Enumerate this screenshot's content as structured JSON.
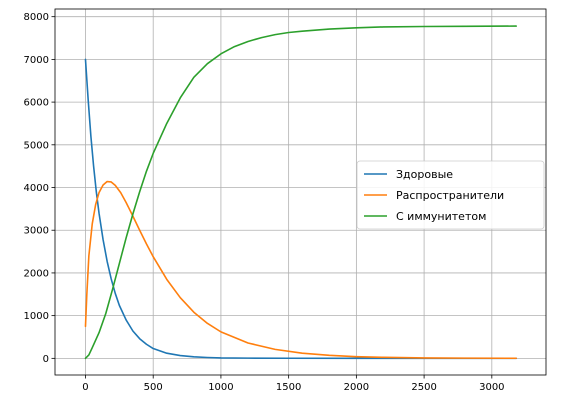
{
  "chart_data": {
    "type": "line",
    "title": "",
    "xlabel": "",
    "ylabel": "",
    "xlim": [
      -225,
      3400
    ],
    "ylim": [
      -390,
      8180
    ],
    "xticks": [
      0,
      500,
      1000,
      1500,
      2000,
      2500,
      3000
    ],
    "yticks": [
      0,
      1000,
      2000,
      3000,
      4000,
      5000,
      6000,
      7000,
      8000
    ],
    "grid": true,
    "legend_position": "center-right",
    "series": [
      {
        "name": "Здоровые",
        "color": "#1f77b4",
        "x": [
          0,
          20,
          40,
          60,
          80,
          100,
          130,
          160,
          190,
          220,
          250,
          300,
          350,
          400,
          450,
          500,
          600,
          700,
          800,
          900,
          1000,
          1200,
          1500,
          2000,
          2500,
          3000,
          3180
        ],
        "y": [
          7000,
          6050,
          5200,
          4500,
          3900,
          3400,
          2780,
          2270,
          1860,
          1520,
          1240,
          900,
          640,
          460,
          330,
          230,
          120,
          65,
          35,
          20,
          10,
          5,
          2,
          1,
          0,
          0,
          0
        ]
      },
      {
        "name": "Распространители",
        "color": "#ff7f0e",
        "x": [
          0,
          10,
          25,
          50,
          75,
          100,
          130,
          160,
          190,
          220,
          260,
          300,
          350,
          400,
          450,
          500,
          600,
          700,
          800,
          900,
          1000,
          1200,
          1400,
          1600,
          1800,
          2000,
          2200,
          2500,
          2800,
          3180
        ],
        "y": [
          750,
          1500,
          2400,
          3150,
          3600,
          3880,
          4060,
          4140,
          4130,
          4050,
          3880,
          3650,
          3330,
          3000,
          2680,
          2380,
          1850,
          1420,
          1080,
          820,
          620,
          360,
          210,
          120,
          70,
          40,
          23,
          10,
          5,
          2
        ]
      },
      {
        "name": "С иммунитетом",
        "color": "#2ca02c",
        "x": [
          0,
          25,
          50,
          100,
          150,
          200,
          250,
          300,
          350,
          400,
          450,
          500,
          600,
          700,
          800,
          900,
          1000,
          1100,
          1200,
          1300,
          1400,
          1500,
          1600,
          1800,
          2000,
          2200,
          2500,
          2800,
          3180
        ],
        "y": [
          0,
          80,
          250,
          600,
          1050,
          1620,
          2220,
          2820,
          3380,
          3900,
          4380,
          4800,
          5500,
          6100,
          6580,
          6900,
          7130,
          7300,
          7420,
          7510,
          7580,
          7630,
          7660,
          7710,
          7740,
          7760,
          7770,
          7775,
          7780
        ]
      }
    ]
  }
}
